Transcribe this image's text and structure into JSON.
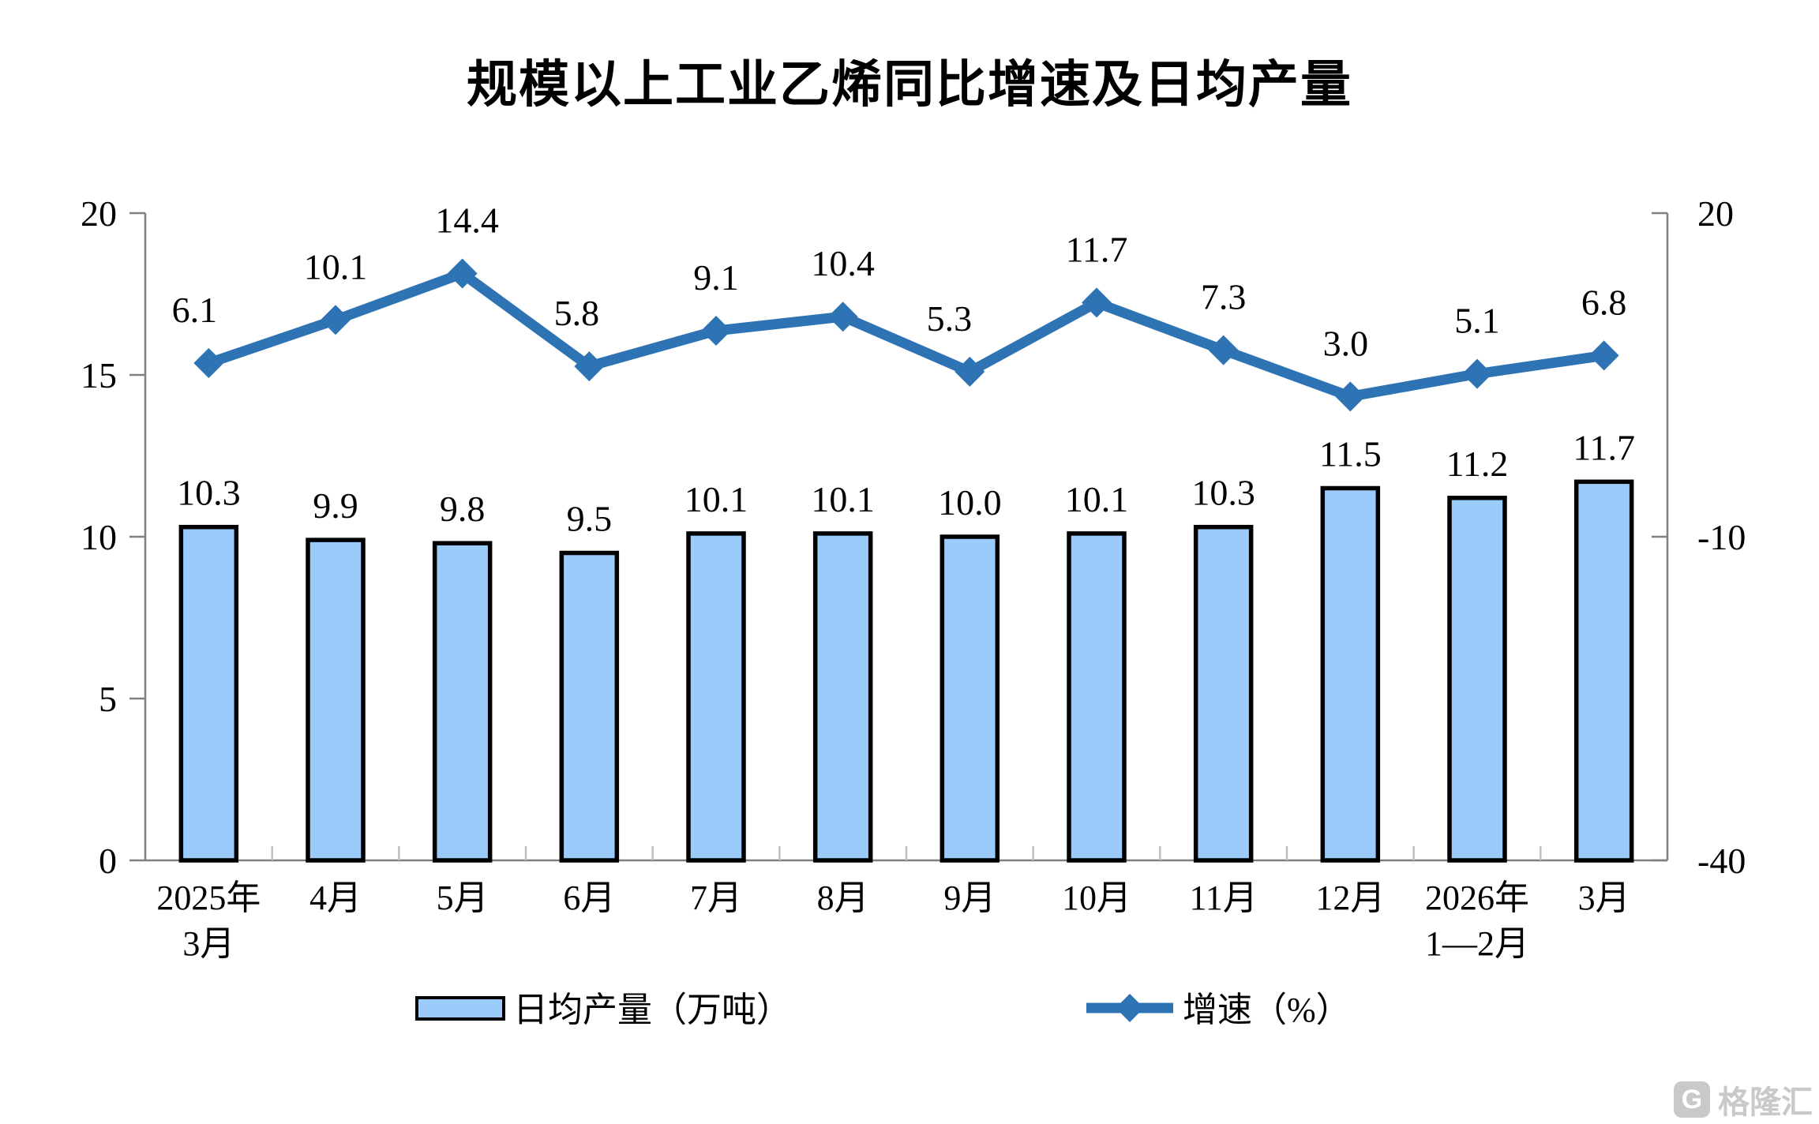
{
  "title": "规模以上工业乙烯同比增速及日均产量",
  "legend": {
    "bar_label": "日均产量（万吨）",
    "line_label": "增速（%）"
  },
  "watermark": {
    "logo": "G",
    "text": "格隆汇"
  },
  "colors": {
    "bar_fill": "#9ACBFA",
    "bar_stroke": "#000000",
    "line": "#2E74B5",
    "axis": "#808080",
    "minor_tick": "#BFBFBF",
    "text": "#000000",
    "watermark": "#C9C9C9"
  },
  "chart_data": {
    "type": "bar",
    "subtype": "combo-bar-line-dual-axis",
    "title": "规模以上工业乙烯同比增速及日均产量",
    "categories": [
      [
        "2025年",
        "3月"
      ],
      [
        "4月"
      ],
      [
        "5月"
      ],
      [
        "6月"
      ],
      [
        "7月"
      ],
      [
        "8月"
      ],
      [
        "9月"
      ],
      [
        "10月"
      ],
      [
        "11月"
      ],
      [
        "12月"
      ],
      [
        "2026年",
        "1—2月"
      ],
      [
        "3月"
      ]
    ],
    "series": [
      {
        "name": "日均产量（万吨）",
        "type": "bar",
        "axis": "left",
        "values": [
          10.3,
          9.9,
          9.8,
          9.5,
          10.1,
          10.1,
          10.0,
          10.1,
          10.3,
          11.5,
          11.2,
          11.7
        ]
      },
      {
        "name": "增速（%）",
        "type": "line",
        "axis": "right",
        "values": [
          6.1,
          10.1,
          14.4,
          5.8,
          9.1,
          10.4,
          5.3,
          11.7,
          7.3,
          3.0,
          5.1,
          6.8
        ]
      }
    ],
    "left_axis": {
      "ticks": [
        0,
        5,
        10,
        15,
        20
      ],
      "range": [
        0,
        20
      ]
    },
    "right_axis": {
      "ticks": [
        -40,
        -10,
        20
      ],
      "range": [
        -40,
        20
      ]
    },
    "grid": false,
    "legend_position": "bottom",
    "data_labels": true
  }
}
